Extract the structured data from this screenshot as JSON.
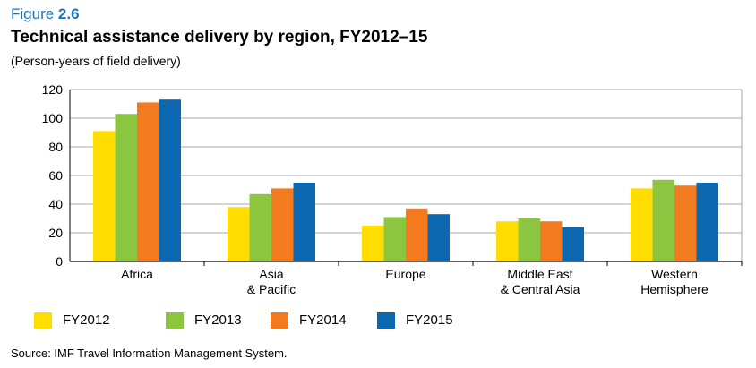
{
  "figure": {
    "prefix": "Figure ",
    "number": "2.6"
  },
  "colors": {
    "accent": "#1f74b9",
    "FY2012": "#ffdd00",
    "FY2013": "#8cc641",
    "FY2014": "#f47a20",
    "FY2015": "#0a67b0"
  },
  "chart_data": {
    "type": "bar",
    "title": "Technical assistance delivery by region, FY2012–15",
    "subtitle": "(Person-years of field delivery)",
    "categories": [
      [
        "Africa"
      ],
      [
        "Asia",
        "& Pacific"
      ],
      [
        "Europe"
      ],
      [
        "Middle East",
        "& Central Asia"
      ],
      [
        "Western",
        "Hemisphere"
      ]
    ],
    "series": [
      {
        "name": "FY2012",
        "color": "#ffdd00",
        "values": [
          91,
          38,
          25,
          28,
          51
        ]
      },
      {
        "name": "FY2013",
        "color": "#8cc641",
        "values": [
          103,
          47,
          31,
          30,
          57
        ]
      },
      {
        "name": "FY2014",
        "color": "#f47a20",
        "values": [
          111,
          51,
          37,
          28,
          53
        ]
      },
      {
        "name": "FY2015",
        "color": "#0a67b0",
        "values": [
          113,
          55,
          33,
          24,
          55
        ]
      }
    ],
    "ylim": [
      0,
      120
    ],
    "yticks": [
      0,
      20,
      40,
      60,
      80,
      100,
      120
    ],
    "grid": true,
    "legend_position": "bottom-left",
    "source": "Source: IMF Travel Information Management System."
  }
}
